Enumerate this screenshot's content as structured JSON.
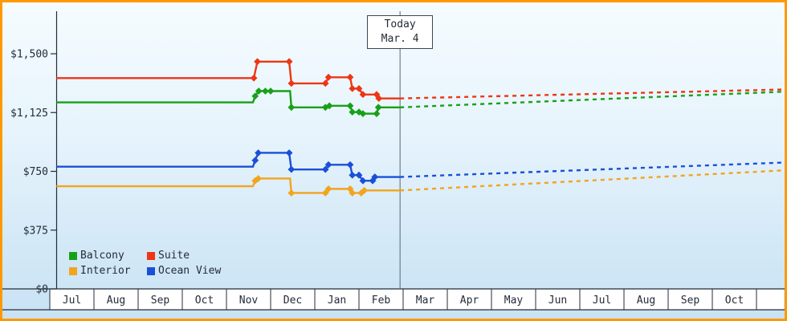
{
  "frame": {
    "border_color": "#ff9900"
  },
  "today_marker": {
    "line1": "Today",
    "line2": "Mar. 4"
  },
  "legend": {
    "items": [
      {
        "label": "Balcony",
        "color": "#18a018"
      },
      {
        "label": "Suite",
        "color": "#ed3614"
      },
      {
        "label": "Interior",
        "color": "#f2a41d"
      },
      {
        "label": "Ocean View",
        "color": "#1b4fd8"
      }
    ]
  },
  "chart_data": {
    "type": "line",
    "x_axis": {
      "unit": "month",
      "labels": [
        "Jul",
        "Aug",
        "Sep",
        "Oct",
        "Nov",
        "Dec",
        "Jan",
        "Feb",
        "Mar",
        "Apr",
        "May",
        "Jun",
        "Jul",
        "Aug",
        "Sep",
        "Oct"
      ],
      "domain_months": [
        0,
        16.6
      ]
    },
    "y_axis": {
      "unit": "USD",
      "max": 1500,
      "ticks": [
        {
          "value": 1500,
          "label": "$1,500"
        },
        {
          "value": 1125,
          "label": "$1,125"
        },
        {
          "value": 750,
          "label": "$750"
        },
        {
          "value": 375,
          "label": "$375"
        },
        {
          "value": 0,
          "label": "$0"
        }
      ]
    },
    "today": {
      "m": 7.93,
      "label": "Today",
      "date": "Mar. 4"
    },
    "series": [
      {
        "name": "Balcony",
        "color": "#18a018",
        "history": [
          [
            0.15,
            1190,
            0
          ],
          [
            4.6,
            1190,
            0
          ],
          [
            4.65,
            1230,
            1
          ],
          [
            4.73,
            1262,
            1
          ],
          [
            4.88,
            1262,
            1
          ],
          [
            5.0,
            1262,
            1
          ],
          [
            5.44,
            1262,
            0
          ],
          [
            5.47,
            1158,
            1
          ],
          [
            6.24,
            1158,
            1
          ],
          [
            6.33,
            1168,
            1
          ],
          [
            6.8,
            1168,
            1
          ],
          [
            6.85,
            1128,
            1
          ],
          [
            7.0,
            1128,
            1
          ],
          [
            7.09,
            1118,
            1
          ],
          [
            7.4,
            1118,
            1
          ],
          [
            7.44,
            1158,
            1
          ],
          [
            7.93,
            1158,
            0
          ]
        ],
        "forecast": [
          [
            7.93,
            1158
          ],
          [
            16.6,
            1258
          ]
        ]
      },
      {
        "name": "Suite",
        "color": "#ed3614",
        "history": [
          [
            0.15,
            1345,
            0
          ],
          [
            4.62,
            1345,
            1
          ],
          [
            4.7,
            1450,
            1
          ],
          [
            5.42,
            1450,
            1
          ],
          [
            5.47,
            1311,
            1
          ],
          [
            6.24,
            1311,
            1
          ],
          [
            6.31,
            1350,
            1
          ],
          [
            6.8,
            1350,
            1
          ],
          [
            6.85,
            1278,
            1
          ],
          [
            7.0,
            1278,
            1
          ],
          [
            7.09,
            1240,
            1
          ],
          [
            7.4,
            1240,
            1
          ],
          [
            7.45,
            1215,
            1
          ],
          [
            7.93,
            1215,
            0
          ]
        ],
        "forecast": [
          [
            7.93,
            1215
          ],
          [
            16.6,
            1272
          ]
        ]
      },
      {
        "name": "Interior",
        "color": "#f2a41d",
        "history": [
          [
            0.15,
            655,
            0
          ],
          [
            4.6,
            655,
            0
          ],
          [
            4.65,
            690,
            1
          ],
          [
            4.72,
            704,
            1
          ],
          [
            5.44,
            704,
            0
          ],
          [
            5.47,
            612,
            1
          ],
          [
            6.24,
            612,
            1
          ],
          [
            6.31,
            638,
            1
          ],
          [
            6.8,
            638,
            1
          ],
          [
            6.85,
            612,
            1
          ],
          [
            7.05,
            612,
            1
          ],
          [
            7.12,
            628,
            1
          ],
          [
            7.93,
            628,
            0
          ]
        ],
        "forecast": [
          [
            7.93,
            628
          ],
          [
            16.6,
            756
          ]
        ]
      },
      {
        "name": "Ocean View",
        "color": "#1b4fd8",
        "history": [
          [
            0.15,
            780,
            0
          ],
          [
            4.6,
            780,
            0
          ],
          [
            4.65,
            820,
            1
          ],
          [
            4.72,
            868,
            1
          ],
          [
            5.42,
            868,
            1
          ],
          [
            5.47,
            762,
            1
          ],
          [
            6.24,
            762,
            1
          ],
          [
            6.31,
            792,
            1
          ],
          [
            6.8,
            792,
            1
          ],
          [
            6.85,
            726,
            1
          ],
          [
            7.0,
            726,
            1
          ],
          [
            7.09,
            690,
            1
          ],
          [
            7.31,
            690,
            1
          ],
          [
            7.36,
            714,
            1
          ],
          [
            7.93,
            714,
            0
          ]
        ],
        "forecast": [
          [
            7.93,
            714
          ],
          [
            16.6,
            806
          ]
        ]
      }
    ]
  }
}
